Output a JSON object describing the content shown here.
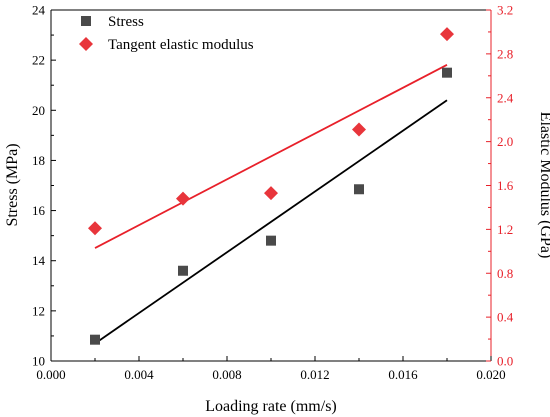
{
  "chart_data": {
    "type": "scatter",
    "xlabel": "Loading rate (mm/s)",
    "ylabel_left": "Stress (MPa)",
    "ylabel_right": "Elastic Modulus (GPa)",
    "xlim": [
      0.0,
      0.02
    ],
    "ylim_left": [
      10,
      24
    ],
    "ylim_right": [
      0.0,
      3.2
    ],
    "xticks": [
      "0.000",
      "0.004",
      "0.008",
      "0.012",
      "0.016",
      "0.020"
    ],
    "yticks_left": [
      "10",
      "12",
      "14",
      "16",
      "18",
      "20",
      "22",
      "24"
    ],
    "yticks_right": [
      "0.0",
      "0.4",
      "0.8",
      "1.2",
      "1.6",
      "2.0",
      "2.4",
      "2.8",
      "3.2"
    ],
    "legend_position": "top-left",
    "grid": false,
    "series": [
      {
        "name": "Stress",
        "axis": "left",
        "marker": "square",
        "color": "#4a4a4a",
        "fit_color": "#000000",
        "points": [
          {
            "x": 0.002,
            "y": 10.85
          },
          {
            "x": 0.006,
            "y": 13.6
          },
          {
            "x": 0.01,
            "y": 14.8
          },
          {
            "x": 0.014,
            "y": 16.85
          },
          {
            "x": 0.018,
            "y": 21.5
          }
        ],
        "fit": {
          "x": [
            0.002,
            0.018
          ],
          "y": [
            10.7,
            20.4
          ]
        }
      },
      {
        "name": "Tangent elastic modulus",
        "axis": "right",
        "marker": "diamond",
        "color": "#e8353b",
        "fit_color": "#e8202a",
        "points": [
          {
            "x": 0.002,
            "y": 1.21
          },
          {
            "x": 0.006,
            "y": 1.48
          },
          {
            "x": 0.01,
            "y": 1.53
          },
          {
            "x": 0.014,
            "y": 2.11
          },
          {
            "x": 0.018,
            "y": 2.98
          }
        ],
        "fit": {
          "x": [
            0.002,
            0.018
          ],
          "y": [
            1.03,
            2.7
          ]
        }
      }
    ]
  }
}
